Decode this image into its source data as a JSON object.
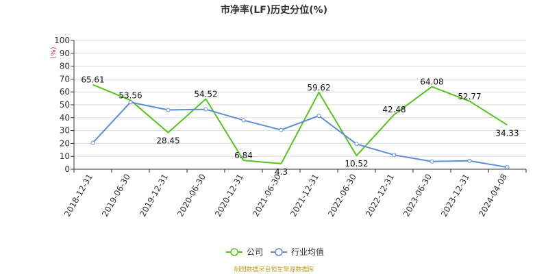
{
  "chart_data": {
    "type": "line",
    "title": "市净率(LF)历史分位(%)",
    "y_unit": "(%)",
    "ylim": [
      0,
      100
    ],
    "y_ticks": [
      0,
      10,
      20,
      30,
      40,
      50,
      60,
      70,
      80,
      90,
      100
    ],
    "categories": [
      "2018-12-31",
      "2019-06-30",
      "2019-12-31",
      "2020-06-30",
      "2020-12-31",
      "2021-06-30",
      "2021-12-31",
      "2022-06-30",
      "2022-12-31",
      "2023-06-30",
      "2023-12-31",
      "2024-04-08"
    ],
    "series": [
      {
        "name": "公司",
        "color": "#52c41a",
        "values": [
          65.61,
          53.56,
          28.45,
          54.52,
          6.84,
          4.3,
          59.62,
          10.52,
          42.48,
          64.08,
          52.77,
          34.33
        ],
        "labels": [
          "65.61",
          "53.56",
          "28.45",
          "54.52",
          "6.84",
          "4.3",
          "59.62",
          "10.52",
          "42.48",
          "64.08",
          "52.77",
          "34.33"
        ]
      },
      {
        "name": "行业均值",
        "color": "#5b8bdc",
        "values": [
          20.5,
          52.0,
          46.0,
          46.5,
          38.0,
          30.5,
          41.5,
          19.5,
          11.0,
          6.0,
          6.5,
          1.5
        ]
      }
    ],
    "grid": true,
    "legend_position": "bottom-center",
    "source": "制图数据来自恒生聚源数据库"
  }
}
